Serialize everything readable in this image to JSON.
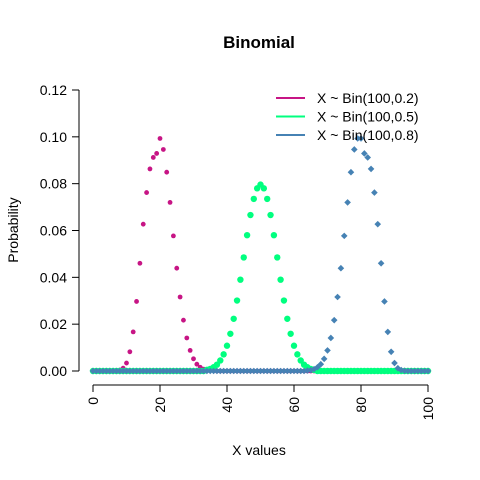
{
  "chart_data": {
    "type": "scatter",
    "title": "Binomial",
    "xlabel": "X values",
    "ylabel": "Probability",
    "xlim": [
      0,
      100
    ],
    "ylim": [
      0,
      0.12
    ],
    "x_ticks": [
      "0",
      "20",
      "40",
      "60",
      "80",
      "100"
    ],
    "y_ticks": [
      "0.00",
      "0.02",
      "0.04",
      "0.06",
      "0.08",
      "0.10",
      "0.12"
    ],
    "legend_position": "top-right",
    "grid": false,
    "x": [
      0,
      1,
      2,
      3,
      4,
      5,
      6,
      7,
      8,
      9,
      10,
      11,
      12,
      13,
      14,
      15,
      16,
      17,
      18,
      19,
      20,
      21,
      22,
      23,
      24,
      25,
      26,
      27,
      28,
      29,
      30,
      31,
      32,
      33,
      34,
      35,
      36,
      37,
      38,
      39,
      40,
      41,
      42,
      43,
      44,
      45,
      46,
      47,
      48,
      49,
      50,
      51,
      52,
      53,
      54,
      55,
      56,
      57,
      58,
      59,
      60,
      61,
      62,
      63,
      64,
      65,
      66,
      67,
      68,
      69,
      70,
      71,
      72,
      73,
      74,
      75,
      76,
      77,
      78,
      79,
      80,
      81,
      82,
      83,
      84,
      85,
      86,
      87,
      88,
      89,
      90,
      91,
      92,
      93,
      94,
      95,
      96,
      97,
      98,
      99,
      100
    ],
    "series": [
      {
        "name": "X ~ Bin(100,0.2)",
        "color": "#c71585",
        "marker": "circle",
        "values": [
          0.0,
          0.0,
          0.0,
          0.0,
          0.0,
          0.0,
          0.0,
          0.0001,
          0.0004,
          0.0012,
          0.0034,
          0.0082,
          0.0167,
          0.0297,
          0.046,
          0.0627,
          0.0762,
          0.0863,
          0.0912,
          0.0929,
          0.0993,
          0.0946,
          0.0849,
          0.072,
          0.0577,
          0.0439,
          0.0316,
          0.0217,
          0.0141,
          0.0088,
          0.0052,
          0.0029,
          0.0016,
          0.0008,
          0.0004,
          0.0002,
          0.0001,
          0.0,
          0.0,
          0.0,
          0.0,
          0.0,
          0.0,
          0.0,
          0.0,
          0.0,
          0.0,
          0.0,
          0.0,
          0.0,
          0.0,
          0.0,
          0.0,
          0.0,
          0.0,
          0.0,
          0.0,
          0.0,
          0.0,
          0.0,
          0.0,
          0.0,
          0.0,
          0.0,
          0.0,
          0.0,
          0.0,
          0.0,
          0.0,
          0.0,
          0.0,
          0.0,
          0.0,
          0.0,
          0.0,
          0.0,
          0.0,
          0.0,
          0.0,
          0.0,
          0.0,
          0.0,
          0.0,
          0.0,
          0.0,
          0.0,
          0.0,
          0.0,
          0.0,
          0.0,
          0.0,
          0.0,
          0.0,
          0.0,
          0.0,
          0.0,
          0.0,
          0.0,
          0.0,
          0.0,
          0.0
        ]
      },
      {
        "name": "X ~ Bin(100,0.5)",
        "color": "#00ff7f",
        "marker": "circle",
        "values": [
          0.0,
          0.0,
          0.0,
          0.0,
          0.0,
          0.0,
          0.0,
          0.0,
          0.0,
          0.0,
          0.0,
          0.0,
          0.0,
          0.0,
          0.0,
          0.0,
          0.0,
          0.0,
          0.0,
          0.0,
          0.0,
          0.0,
          0.0,
          0.0,
          0.0,
          0.0,
          0.0,
          0.0,
          0.0,
          0.0,
          0.0,
          0.0,
          0.0,
          0.0,
          0.0005,
          0.0009,
          0.0016,
          0.0027,
          0.0045,
          0.0071,
          0.0108,
          0.0159,
          0.0223,
          0.0301,
          0.039,
          0.0485,
          0.058,
          0.0666,
          0.0735,
          0.078,
          0.0796,
          0.078,
          0.0735,
          0.0666,
          0.058,
          0.0485,
          0.039,
          0.0301,
          0.0223,
          0.0159,
          0.0108,
          0.0071,
          0.0045,
          0.0027,
          0.0016,
          0.0009,
          0.0005,
          0.0,
          0.0,
          0.0,
          0.0,
          0.0,
          0.0,
          0.0,
          0.0,
          0.0,
          0.0,
          0.0,
          0.0,
          0.0,
          0.0,
          0.0,
          0.0,
          0.0,
          0.0,
          0.0,
          0.0,
          0.0,
          0.0,
          0.0,
          0.0,
          0.0,
          0.0,
          0.0,
          0.0,
          0.0,
          0.0,
          0.0,
          0.0,
          0.0,
          0.0
        ]
      },
      {
        "name": "X ~ Bin(100,0.8)",
        "color": "#4682b4",
        "marker": "diamond",
        "values": [
          0.0,
          0.0,
          0.0,
          0.0,
          0.0,
          0.0,
          0.0,
          0.0,
          0.0,
          0.0,
          0.0,
          0.0,
          0.0,
          0.0,
          0.0,
          0.0,
          0.0,
          0.0,
          0.0,
          0.0,
          0.0,
          0.0,
          0.0,
          0.0,
          0.0,
          0.0,
          0.0,
          0.0,
          0.0,
          0.0,
          0.0,
          0.0,
          0.0,
          0.0,
          0.0,
          0.0,
          0.0,
          0.0,
          0.0,
          0.0,
          0.0,
          0.0,
          0.0,
          0.0,
          0.0,
          0.0,
          0.0,
          0.0,
          0.0,
          0.0,
          0.0,
          0.0,
          0.0,
          0.0,
          0.0,
          0.0,
          0.0,
          0.0,
          0.0,
          0.0,
          0.0,
          0.0,
          0.0,
          0.0,
          0.0002,
          0.0004,
          0.0008,
          0.0016,
          0.0029,
          0.0052,
          0.0088,
          0.0141,
          0.0217,
          0.0316,
          0.0439,
          0.0577,
          0.072,
          0.0849,
          0.0946,
          0.0993,
          0.0993,
          0.0929,
          0.0912,
          0.0863,
          0.0762,
          0.0627,
          0.046,
          0.0297,
          0.0167,
          0.0082,
          0.0034,
          0.0012,
          0.0004,
          0.0001,
          0.0,
          0.0,
          0.0,
          0.0,
          0.0,
          0.0,
          0.0
        ]
      }
    ]
  }
}
